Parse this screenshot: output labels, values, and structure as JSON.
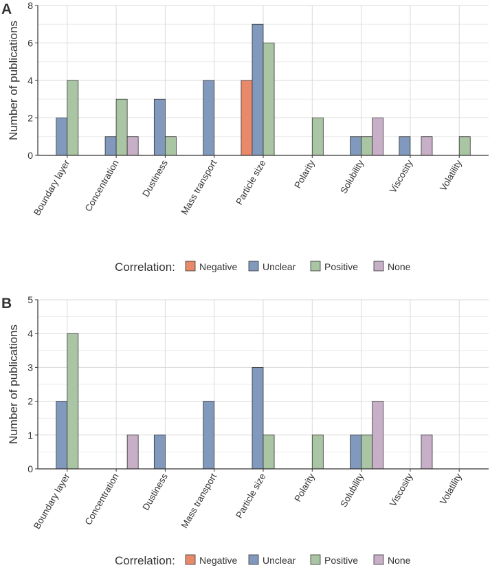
{
  "chart_data": [
    {
      "panel_label": "A",
      "type": "bar",
      "ylabel": "Number of publications",
      "ylim": [
        0,
        8
      ],
      "yticks": [
        0,
        2,
        4,
        6,
        8
      ],
      "grid": true,
      "categories": [
        "Boundary layer",
        "Concentration",
        "Dustiness",
        "Mass transport",
        "Particle size",
        "Polarity",
        "Solubility",
        "Viscosity",
        "Volatility"
      ],
      "series": [
        {
          "name": "Negative",
          "color": "#E8896A",
          "values": [
            0,
            0,
            0,
            0,
            4,
            0,
            0,
            0,
            0
          ]
        },
        {
          "name": "Unclear",
          "color": "#8199BD",
          "values": [
            2,
            1,
            3,
            4,
            7,
            0,
            1,
            1,
            0
          ]
        },
        {
          "name": "Positive",
          "color": "#AAC5A3",
          "values": [
            4,
            3,
            1,
            0,
            6,
            2,
            1,
            0,
            1
          ]
        },
        {
          "name": "None",
          "color": "#C8AFC8",
          "values": [
            0,
            1,
            0,
            0,
            0,
            0,
            2,
            1,
            0
          ]
        }
      ],
      "legend": {
        "title": "Correlation:",
        "placement": "bottom"
      }
    },
    {
      "panel_label": "B",
      "type": "bar",
      "ylabel": "Number of publications",
      "ylim": [
        0,
        5
      ],
      "yticks": [
        0,
        1,
        2,
        3,
        4,
        5
      ],
      "grid": true,
      "categories": [
        "Boundary layer",
        "Concentration",
        "Dustiness",
        "Mass transport",
        "Particle size",
        "Polarity",
        "Solubility",
        "Viscosity",
        "Volatility"
      ],
      "series": [
        {
          "name": "Negative",
          "color": "#E8896A",
          "values": [
            0,
            0,
            0,
            0,
            0,
            0,
            0,
            0,
            0
          ]
        },
        {
          "name": "Unclear",
          "color": "#8199BD",
          "values": [
            2,
            0,
            1,
            2,
            3,
            0,
            1,
            0,
            0
          ]
        },
        {
          "name": "Positive",
          "color": "#AAC5A3",
          "values": [
            4,
            0,
            0,
            0,
            1,
            1,
            1,
            0,
            0
          ]
        },
        {
          "name": "None",
          "color": "#C8AFC8",
          "values": [
            0,
            1,
            0,
            0,
            0,
            0,
            2,
            1,
            0
          ]
        }
      ],
      "legend": {
        "title": "Correlation:",
        "placement": "bottom"
      }
    }
  ]
}
